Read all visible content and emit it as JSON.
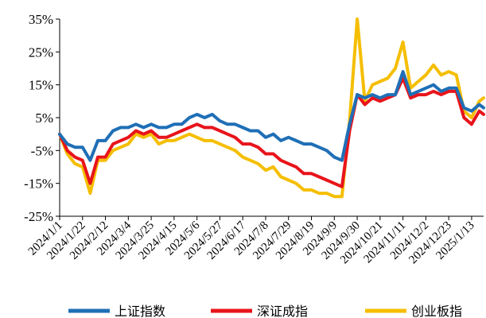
{
  "chart_data": {
    "type": "line",
    "title": "",
    "xlabel": "",
    "ylabel": "",
    "ylim": [
      -25,
      35
    ],
    "yticks": [
      "35%",
      "25%",
      "15%",
      "5%",
      "-5%",
      "-15%",
      "-25%"
    ],
    "ytick_values": [
      35,
      25,
      15,
      5,
      -5,
      -15,
      -25
    ],
    "x_start": "2024/1/1",
    "x_end": "2025/1/24",
    "xticks": [
      "2024/1/1",
      "2024/1/22",
      "2024/2/12",
      "2024/3/4",
      "2024/3/25",
      "2024/4/15",
      "2024/5/6",
      "2024/5/27",
      "2024/6/17",
      "2024/7/8",
      "2024/7/29",
      "2024/8/19",
      "2024/9/9",
      "2024/9/30",
      "2024/10/21",
      "2024/11/11",
      "2024/12/2",
      "2024/12/23",
      "2025/1/13"
    ],
    "legend_position": "bottom",
    "grid": false,
    "series": [
      {
        "name": "上证指数",
        "color": "#1F6FB6",
        "x": [
          "2024/1/1",
          "2024/1/8",
          "2024/1/15",
          "2024/1/22",
          "2024/1/29",
          "2024/2/5",
          "2024/2/12",
          "2024/2/19",
          "2024/2/26",
          "2024/3/4",
          "2024/3/11",
          "2024/3/18",
          "2024/3/25",
          "2024/4/1",
          "2024/4/8",
          "2024/4/15",
          "2024/4/22",
          "2024/4/29",
          "2024/5/6",
          "2024/5/13",
          "2024/5/20",
          "2024/5/27",
          "2024/6/3",
          "2024/6/10",
          "2024/6/17",
          "2024/6/24",
          "2024/7/1",
          "2024/7/8",
          "2024/7/15",
          "2024/7/22",
          "2024/7/29",
          "2024/8/5",
          "2024/8/12",
          "2024/8/19",
          "2024/8/26",
          "2024/9/2",
          "2024/9/9",
          "2024/9/16",
          "2024/9/23",
          "2024/9/30",
          "2024/10/7",
          "2024/10/14",
          "2024/10/21",
          "2024/10/28",
          "2024/11/4",
          "2024/11/11",
          "2024/11/18",
          "2024/11/25",
          "2024/12/2",
          "2024/12/9",
          "2024/12/16",
          "2024/12/23",
          "2024/12/30",
          "2025/1/6",
          "2025/1/13",
          "2025/1/20",
          "2025/1/24"
        ],
        "values": [
          0,
          -3,
          -4,
          -4,
          -8,
          -2,
          -2,
          1,
          2,
          2,
          3,
          2,
          3,
          2,
          2,
          3,
          3,
          5,
          6,
          5,
          6,
          4,
          3,
          3,
          2,
          1,
          1,
          -1,
          0,
          -2,
          -1,
          -2,
          -3,
          -3,
          -4,
          -5,
          -7,
          -8,
          3,
          12,
          11,
          12,
          11,
          12,
          12,
          19,
          12,
          13,
          14,
          15,
          13,
          14,
          14,
          8,
          7,
          9,
          8
        ]
      },
      {
        "name": "深证成指",
        "color": "#E8141B",
        "x": [
          "2024/1/1",
          "2024/1/8",
          "2024/1/15",
          "2024/1/22",
          "2024/1/29",
          "2024/2/5",
          "2024/2/12",
          "2024/2/19",
          "2024/2/26",
          "2024/3/4",
          "2024/3/11",
          "2024/3/18",
          "2024/3/25",
          "2024/4/1",
          "2024/4/8",
          "2024/4/15",
          "2024/4/22",
          "2024/4/29",
          "2024/5/6",
          "2024/5/13",
          "2024/5/20",
          "2024/5/27",
          "2024/6/3",
          "2024/6/10",
          "2024/6/17",
          "2024/6/24",
          "2024/7/1",
          "2024/7/8",
          "2024/7/15",
          "2024/7/22",
          "2024/7/29",
          "2024/8/5",
          "2024/8/12",
          "2024/8/19",
          "2024/8/26",
          "2024/9/2",
          "2024/9/9",
          "2024/9/16",
          "2024/9/23",
          "2024/9/30",
          "2024/10/7",
          "2024/10/14",
          "2024/10/21",
          "2024/10/28",
          "2024/11/4",
          "2024/11/11",
          "2024/11/18",
          "2024/11/25",
          "2024/12/2",
          "2024/12/9",
          "2024/12/16",
          "2024/12/23",
          "2024/12/30",
          "2025/1/6",
          "2025/1/13",
          "2025/1/20",
          "2025/1/24"
        ],
        "values": [
          0,
          -5,
          -7,
          -8,
          -15,
          -7,
          -7,
          -3,
          -2,
          -1,
          1,
          0,
          1,
          -1,
          -1,
          0,
          1,
          2,
          3,
          2,
          2,
          1,
          0,
          -1,
          -3,
          -3,
          -4,
          -6,
          -6,
          -8,
          -9,
          -10,
          -12,
          -12,
          -13,
          -14,
          -15,
          -16,
          1,
          12,
          9,
          11,
          10,
          11,
          12,
          17,
          11,
          12,
          12,
          13,
          12,
          13,
          13,
          5,
          3,
          7,
          6
        ]
      },
      {
        "name": "创业板指",
        "color": "#F5BE00",
        "x": [
          "2024/1/1",
          "2024/1/8",
          "2024/1/15",
          "2024/1/22",
          "2024/1/29",
          "2024/2/5",
          "2024/2/12",
          "2024/2/19",
          "2024/2/26",
          "2024/3/4",
          "2024/3/11",
          "2024/3/18",
          "2024/3/25",
          "2024/4/1",
          "2024/4/8",
          "2024/4/15",
          "2024/4/22",
          "2024/4/29",
          "2024/5/6",
          "2024/5/13",
          "2024/5/20",
          "2024/5/27",
          "2024/6/3",
          "2024/6/10",
          "2024/6/17",
          "2024/6/24",
          "2024/7/1",
          "2024/7/8",
          "2024/7/15",
          "2024/7/22",
          "2024/7/29",
          "2024/8/5",
          "2024/8/12",
          "2024/8/19",
          "2024/8/26",
          "2024/9/2",
          "2024/9/9",
          "2024/9/16",
          "2024/9/23",
          "2024/9/30",
          "2024/10/7",
          "2024/10/14",
          "2024/10/21",
          "2024/10/28",
          "2024/11/4",
          "2024/11/11",
          "2024/11/18",
          "2024/11/25",
          "2024/12/2",
          "2024/12/9",
          "2024/12/16",
          "2024/12/23",
          "2024/12/30",
          "2025/1/6",
          "2025/1/13",
          "2025/1/20",
          "2025/1/24"
        ],
        "values": [
          0,
          -6,
          -9,
          -10,
          -18,
          -8,
          -8,
          -5,
          -4,
          -3,
          0,
          -1,
          0,
          -3,
          -2,
          -2,
          -1,
          0,
          -1,
          -2,
          -2,
          -3,
          -4,
          -5,
          -7,
          -8,
          -9,
          -11,
          -10,
          -13,
          -14,
          -15,
          -17,
          -17,
          -18,
          -18,
          -19,
          -19,
          4,
          35,
          10,
          15,
          16,
          17,
          20,
          28,
          14,
          16,
          18,
          21,
          18,
          19,
          18,
          7,
          5,
          10,
          11
        ]
      }
    ]
  }
}
